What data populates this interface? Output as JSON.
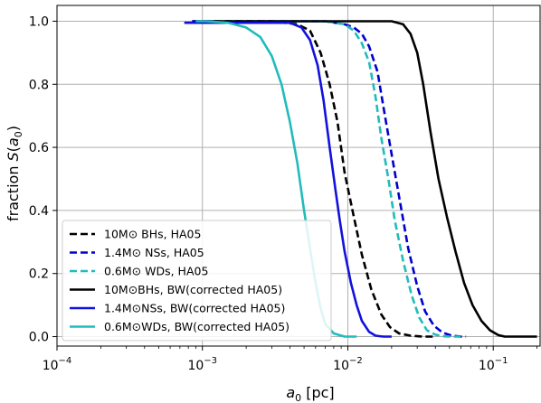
{
  "chart_data": {
    "type": "line",
    "xlabel": "a_0 [pc]",
    "ylabel": "fraction S(a_0)",
    "xscale": "log",
    "xlim": [
      0.0001,
      0.21
    ],
    "ylim": [
      -0.03,
      1.05
    ],
    "grid": true,
    "legend_position": "lower-left",
    "x_ticks": [
      {
        "value": 0.0001,
        "base": "10",
        "exp": "−4"
      },
      {
        "value": 0.001,
        "base": "10",
        "exp": "−3"
      },
      {
        "value": 0.01,
        "base": "10",
        "exp": "−2"
      },
      {
        "value": 0.1,
        "base": "10",
        "exp": "−1"
      }
    ],
    "y_ticks": [
      "0.0",
      "0.2",
      "0.4",
      "0.6",
      "0.8",
      "1.0"
    ],
    "series": [
      {
        "name": "10M⊙ BHs, HA05",
        "color": "#000000",
        "dashed": true,
        "x": [
          0.00085,
          0.003,
          0.0045,
          0.0055,
          0.0065,
          0.0075,
          0.0085,
          0.0095,
          0.011,
          0.0125,
          0.0145,
          0.017,
          0.0195,
          0.0225,
          0.027,
          0.033,
          0.04
        ],
        "y": [
          1.0,
          1.0,
          0.99,
          0.97,
          0.9,
          0.8,
          0.68,
          0.52,
          0.38,
          0.26,
          0.15,
          0.07,
          0.03,
          0.01,
          0.003,
          0.0,
          0.0
        ]
      },
      {
        "name": "1.4M⊙ NSs, HA05",
        "color": "#0000cc",
        "dashed": true,
        "x": [
          0.00085,
          0.007,
          0.0095,
          0.011,
          0.0125,
          0.014,
          0.016,
          0.018,
          0.0205,
          0.023,
          0.026,
          0.03,
          0.034,
          0.039,
          0.045,
          0.052,
          0.06,
          0.065
        ],
        "y": [
          1.0,
          1.0,
          0.99,
          0.98,
          0.96,
          0.92,
          0.84,
          0.7,
          0.55,
          0.42,
          0.28,
          0.16,
          0.08,
          0.035,
          0.012,
          0.003,
          0.0,
          0.0
        ]
      },
      {
        "name": "0.6M⊙ WDs, HA05",
        "color": "#22bbbb",
        "dashed": true,
        "x": [
          0.0009,
          0.007,
          0.0095,
          0.011,
          0.0125,
          0.014,
          0.0155,
          0.017,
          0.019,
          0.021,
          0.024,
          0.0275,
          0.031,
          0.035,
          0.04,
          0.046,
          0.052,
          0.06
        ],
        "y": [
          1.0,
          1.0,
          0.99,
          0.97,
          0.93,
          0.87,
          0.76,
          0.63,
          0.5,
          0.37,
          0.24,
          0.13,
          0.06,
          0.02,
          0.006,
          0.001,
          0.0,
          0.0
        ]
      },
      {
        "name": "10M⊙BHs, BW(corrected HA05)",
        "color": "#000000",
        "dashed": false,
        "x": [
          0.0009,
          0.01,
          0.02,
          0.024,
          0.027,
          0.03,
          0.033,
          0.037,
          0.042,
          0.048,
          0.055,
          0.063,
          0.072,
          0.083,
          0.095,
          0.108,
          0.12,
          0.135,
          0.2
        ],
        "y": [
          1.0,
          1.0,
          1.0,
          0.99,
          0.96,
          0.9,
          0.8,
          0.65,
          0.5,
          0.38,
          0.27,
          0.17,
          0.1,
          0.05,
          0.02,
          0.005,
          0.0,
          0.0,
          0.0
        ]
      },
      {
        "name": "1.4M⊙NSs, BW(corrected HA05)",
        "color": "#1111dd",
        "dashed": false,
        "x": [
          0.00075,
          0.004,
          0.0048,
          0.0055,
          0.0062,
          0.0068,
          0.0075,
          0.0082,
          0.0088,
          0.0095,
          0.0105,
          0.0115,
          0.0125,
          0.014,
          0.0155,
          0.0175,
          0.02
        ],
        "y": [
          0.995,
          0.995,
          0.98,
          0.94,
          0.86,
          0.75,
          0.6,
          0.47,
          0.37,
          0.27,
          0.17,
          0.1,
          0.05,
          0.015,
          0.003,
          0.0,
          0.0
        ]
      },
      {
        "name": "0.6M⊙WDs, BW(corrected HA05)",
        "color": "#22bbbb",
        "dashed": false,
        "x": [
          0.0009,
          0.00105,
          0.0015,
          0.002,
          0.0025,
          0.003,
          0.0035,
          0.004,
          0.0045,
          0.005,
          0.0055,
          0.006,
          0.0065,
          0.007,
          0.008,
          0.0095,
          0.0115
        ],
        "y": [
          1.0,
          1.0,
          0.995,
          0.98,
          0.95,
          0.89,
          0.8,
          0.68,
          0.55,
          0.4,
          0.28,
          0.17,
          0.09,
          0.04,
          0.01,
          0.0,
          0.0
        ]
      }
    ]
  }
}
